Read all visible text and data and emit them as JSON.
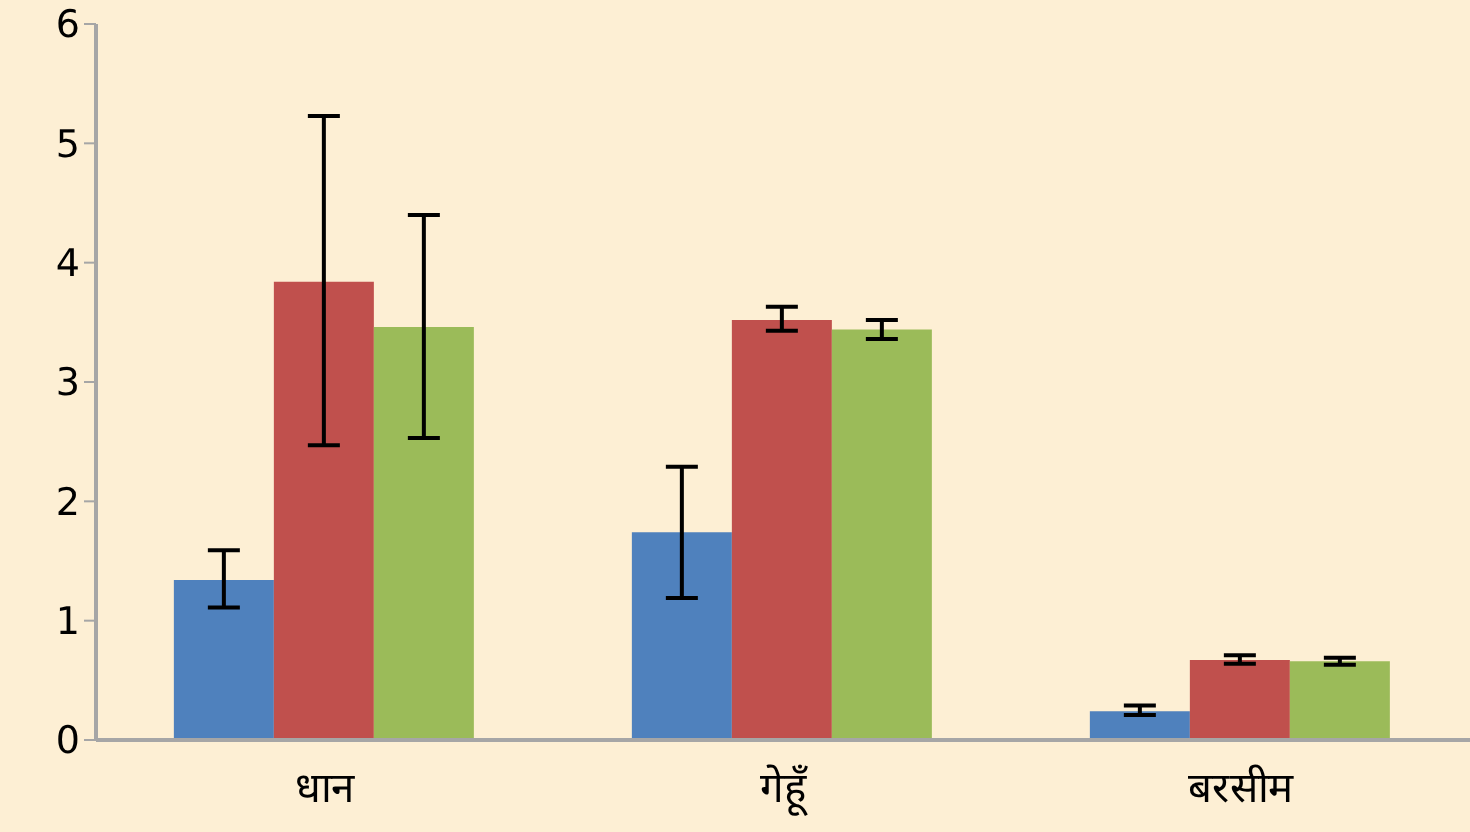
{
  "chart_data": {
    "type": "bar",
    "categories": [
      "धान",
      "गेहूँ",
      "बरसीम"
    ],
    "series": [
      {
        "color": "#4f81bd",
        "values": [
          1.34,
          1.74,
          0.24
        ],
        "errors": [
          [
            1.11,
            1.59
          ],
          [
            1.19,
            2.29
          ],
          [
            0.21,
            0.29
          ]
        ]
      },
      {
        "color": "#c0504d",
        "values": [
          3.84,
          3.52,
          0.67
        ],
        "errors": [
          [
            2.47,
            5.23
          ],
          [
            3.43,
            3.63
          ],
          [
            0.64,
            0.71
          ]
        ]
      },
      {
        "color": "#9bbb59",
        "values": [
          3.46,
          3.44,
          0.66
        ],
        "errors": [
          [
            2.53,
            4.4
          ],
          [
            3.36,
            3.52
          ],
          [
            0.63,
            0.69
          ]
        ]
      }
    ],
    "ylim": [
      0,
      6
    ],
    "yticks": [
      0,
      1,
      2,
      3,
      4,
      5,
      6
    ],
    "grid": false,
    "legend": false
  }
}
